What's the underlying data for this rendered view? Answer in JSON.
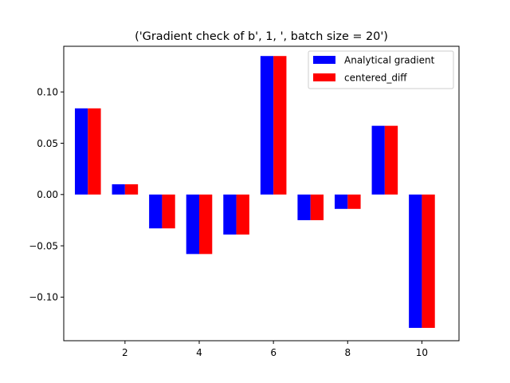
{
  "chart_data": {
    "type": "bar",
    "title": "('Gradient check of b', 1, ', batch size = 20')",
    "xlabel": "",
    "ylabel": "",
    "x": [
      1,
      2,
      3,
      4,
      5,
      6,
      7,
      8,
      9,
      10
    ],
    "xticks": [
      2,
      4,
      6,
      8,
      10
    ],
    "xlim": [
      0.35,
      11.0
    ],
    "yticks": [
      -0.1,
      -0.05,
      0.0,
      0.05,
      0.1
    ],
    "ytick_labels": [
      "−0.10",
      "−0.05",
      "0.00",
      "0.05",
      "0.10"
    ],
    "ylim": [
      -0.1425,
      0.1445
    ],
    "grid": false,
    "legend_position": "top-right",
    "series": [
      {
        "name": "Analytical gradient",
        "color": "#0000ff",
        "values": [
          0.084,
          0.01,
          -0.033,
          -0.058,
          -0.039,
          0.135,
          -0.025,
          -0.014,
          0.067,
          -0.13
        ]
      },
      {
        "name": "centered_diff",
        "color": "#ff0000",
        "values": [
          0.084,
          0.01,
          -0.033,
          -0.058,
          -0.039,
          0.135,
          -0.025,
          -0.014,
          0.067,
          -0.13
        ]
      }
    ]
  }
}
